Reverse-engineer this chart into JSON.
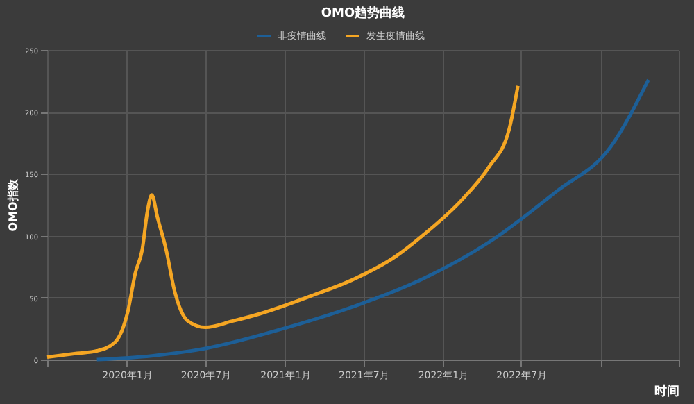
{
  "chart_data": {
    "type": "line",
    "title": "OMO趋势曲线",
    "xlabel": "时间",
    "ylabel": "OMO指数",
    "xlim": [
      "2019-07-01",
      "2023-07-01"
    ],
    "xticks": [
      {
        "value": "2019-07-01",
        "label": null
      },
      {
        "value": "2020-01-01",
        "label": "2020年1月"
      },
      {
        "value": "2020-07-01",
        "label": "2020年7月"
      },
      {
        "value": "2021-01-01",
        "label": "2021年1月"
      },
      {
        "value": "2021-07-01",
        "label": "2021年7月"
      },
      {
        "value": "2022-01-01",
        "label": "2022年1月"
      },
      {
        "value": "2022-07-01",
        "label": "2022年7月"
      },
      {
        "value": "2023-01-01",
        "label": null
      },
      {
        "value": "2023-07-01",
        "label": null
      }
    ],
    "ylim": [
      0,
      250
    ],
    "yticks": [
      0,
      50,
      100,
      150,
      200,
      250
    ],
    "grid": true,
    "legend": "top",
    "marker": "none",
    "line_style": "solid",
    "series": [
      {
        "name": "非疫情曲线",
        "color": "#1d5f97",
        "x": [
          "2019-10-24",
          "2020-02-28",
          "2020-07-01",
          "2021-01-07",
          "2021-06-10",
          "2021-11-15",
          "2022-04-19",
          "2022-09-22",
          "2023-01-25",
          "2023-04-22"
        ],
        "values": [
          0,
          3,
          9,
          26,
          43,
          65,
          95,
          136,
          172,
          226
        ]
      },
      {
        "name": "发生疫情曲线",
        "color": "#f5a623",
        "x": [
          "2019-07-01",
          "2019-09-08",
          "2019-10-24",
          "2019-12-05",
          "2020-01-03",
          "2020-01-21",
          "2020-02-06",
          "2020-02-18",
          "2020-02-28",
          "2020-03-12",
          "2020-04-01",
          "2020-04-21",
          "2020-05-22",
          "2020-07-01",
          "2020-09-01",
          "2020-11-04",
          "2021-03-07",
          "2021-06-10",
          "2021-09-13",
          "2021-11-15",
          "2022-02-17",
          "2022-04-19",
          "2022-06-03",
          "2022-06-24"
        ],
        "values": [
          2,
          5,
          7,
          14,
          38,
          70,
          89,
          120,
          133,
          115,
          89,
          55,
          31,
          26,
          31,
          37,
          52,
          65,
          83,
          100,
          130,
          156,
          185,
          221
        ]
      }
    ]
  }
}
